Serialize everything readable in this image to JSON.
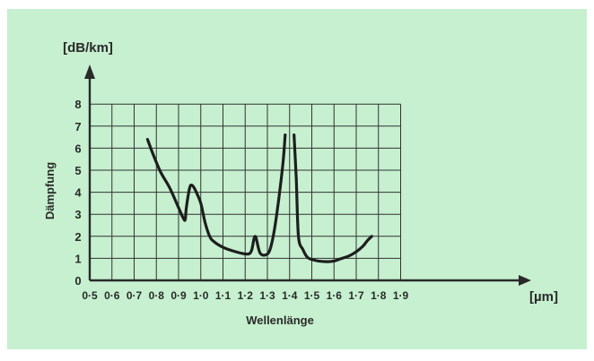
{
  "colors": {
    "background": "#c6f0cf",
    "ink": "#2a2a2a",
    "curve": "#1e1e1e",
    "grid": "#333333"
  },
  "chart_data": {
    "type": "line",
    "xlabel": "Wellenlänge",
    "ylabel": "Dämpfung",
    "x_unit": "[µm]",
    "y_unit": "[dB/km]",
    "xlim": [
      0.5,
      1.9
    ],
    "ylim": [
      0,
      8
    ],
    "grid": true,
    "x_ticks": [
      0.5,
      0.6,
      0.7,
      0.8,
      0.9,
      1.0,
      1.1,
      1.2,
      1.3,
      1.4,
      1.5,
      1.6,
      1.7,
      1.8,
      1.9
    ],
    "x_tick_labels": [
      "0·5",
      "0·6",
      "0·7",
      "0·8",
      "0·9",
      "1·0",
      "1·1",
      "1·2",
      "1·3",
      "1·4",
      "1·5",
      "1·6",
      "1·7",
      "1·8",
      "1·9"
    ],
    "y_ticks": [
      0,
      1,
      2,
      3,
      4,
      5,
      6,
      7,
      8
    ],
    "y_tick_labels": [
      "0",
      "1",
      "2",
      "3",
      "4",
      "5",
      "6",
      "7",
      "8"
    ],
    "series": [
      {
        "segment": 1,
        "x": [
          0.76,
          0.79,
          0.82,
          0.86,
          0.9,
          0.92,
          0.93,
          0.935,
          0.95,
          0.96,
          0.97,
          0.98,
          1.0,
          1.02,
          1.04,
          1.06,
          1.1,
          1.15,
          1.2,
          1.22,
          1.23,
          1.24,
          1.245,
          1.25,
          1.26,
          1.27,
          1.29,
          1.31,
          1.33,
          1.35,
          1.37,
          1.38
        ],
        "y": [
          6.4,
          5.6,
          4.9,
          4.2,
          3.3,
          2.85,
          2.75,
          3.3,
          4.2,
          4.32,
          4.2,
          4.0,
          3.5,
          2.6,
          2.0,
          1.75,
          1.5,
          1.32,
          1.2,
          1.22,
          1.4,
          1.9,
          2.0,
          1.9,
          1.45,
          1.2,
          1.15,
          1.35,
          2.2,
          3.6,
          5.3,
          6.6
        ]
      },
      {
        "segment": 2,
        "x": [
          1.42,
          1.43,
          1.44,
          1.46,
          1.48,
          1.5,
          1.53,
          1.57,
          1.6,
          1.63,
          1.67,
          1.7,
          1.73,
          1.75,
          1.77
        ],
        "y": [
          6.6,
          4.6,
          2.0,
          1.4,
          1.05,
          0.95,
          0.88,
          0.85,
          0.88,
          0.98,
          1.12,
          1.3,
          1.55,
          1.8,
          2.0
        ]
      }
    ]
  }
}
